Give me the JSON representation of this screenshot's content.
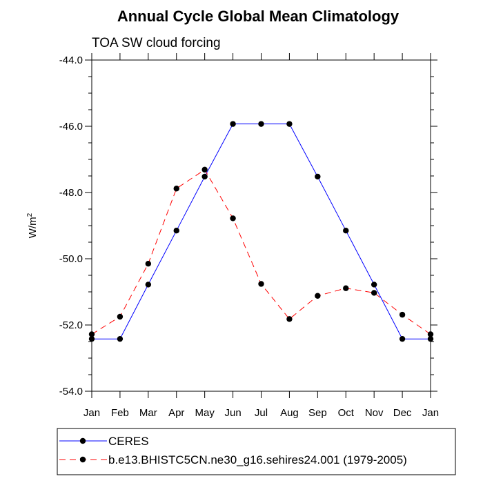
{
  "chart_data": {
    "type": "line",
    "title": "Annual Cycle Global Mean Climatology",
    "subtitle": "TOA SW cloud forcing",
    "ylabel_base": "W/m",
    "ylabel_sup": "2",
    "xlabel": "",
    "categories": [
      "Jan",
      "Feb",
      "Mar",
      "Apr",
      "May",
      "Jun",
      "Jul",
      "Aug",
      "Sep",
      "Oct",
      "Nov",
      "Dec",
      "Jan"
    ],
    "ylim": [
      -54.0,
      -44.0
    ],
    "yticks": [
      "-54.0",
      "-52.0",
      "-50.0",
      "-48.0",
      "-46.0",
      "-44.0"
    ],
    "grid": false,
    "legend_position": "bottom",
    "series": [
      {
        "name": "CERES",
        "color": "#0000ff",
        "dash": "solid",
        "values": [
          -52.42,
          -52.42,
          -50.78,
          -49.15,
          -47.52,
          -45.93,
          -45.93,
          -45.93,
          -47.52,
          -49.15,
          -50.78,
          -52.42,
          -52.42
        ]
      },
      {
        "name": "b.e13.BHISTC5CN.ne30_g16.sehires24.001 (1979-2005)",
        "color": "#ff0000",
        "dash": "dashed",
        "values": [
          -52.28,
          -51.75,
          -50.15,
          -47.88,
          -47.31,
          -48.78,
          -50.76,
          -51.82,
          -51.12,
          -50.89,
          -51.03,
          -51.69,
          -52.28
        ]
      }
    ]
  }
}
